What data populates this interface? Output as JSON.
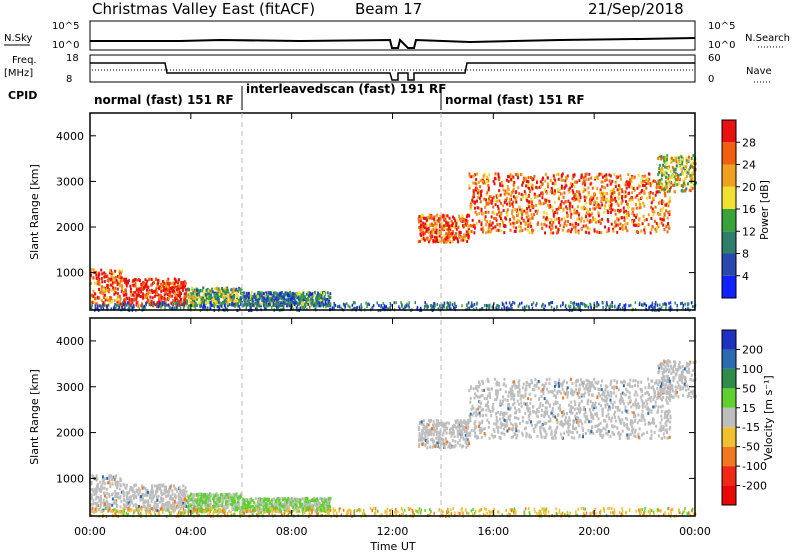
{
  "header": {
    "title": "Christmas Valley East (fitACF)",
    "beam": "Beam 17",
    "date": "21/Sep/2018"
  },
  "panels": {
    "nsky": {
      "label": "N.Sky",
      "right_label": "N.Search",
      "left_ticks": [
        "10^5",
        "10^0"
      ],
      "right_ticks": [
        "10^5",
        "10^0"
      ]
    },
    "freq": {
      "label_top": "Freq.",
      "label_unit": "[MHz]",
      "left_ticks": [
        "18",
        "8"
      ],
      "right_ticks": [
        "60",
        "0"
      ],
      "right_label": "Nave"
    },
    "cpid": {
      "label": "CPID",
      "modes": [
        "normal (fast) 151 RF",
        "interleavedscan (fast) 191 RF",
        "normal (fast) 151 RF"
      ]
    }
  },
  "chart_data": [
    {
      "type": "heatmap",
      "name": "power",
      "ylabel": "Slant Range [km]",
      "yticks": [
        "1000",
        "2000",
        "3000",
        "4000"
      ],
      "colorbar_label": "Power [dB]",
      "colorbar_ticks": [
        "4",
        "8",
        "12",
        "16",
        "20",
        "24",
        "28"
      ],
      "colorbar_colors": [
        "#1020ff",
        "#2848b0",
        "#2e7e6a",
        "#3aa23a",
        "#f0e030",
        "#f0a020",
        "#f06010",
        "#e81010"
      ],
      "blobs": [
        {
          "t0": 0.0,
          "t1": 1.3,
          "r0": 300,
          "r1": 1100,
          "level": 6
        },
        {
          "t0": 1.3,
          "t1": 3.8,
          "r0": 300,
          "r1": 900,
          "level": 7
        },
        {
          "t0": 3.8,
          "t1": 6.0,
          "r0": 300,
          "r1": 700,
          "level": 3
        },
        {
          "t0": 6.0,
          "t1": 9.5,
          "r0": 300,
          "r1": 600,
          "level": 2
        },
        {
          "t0": 13.0,
          "t1": 15.0,
          "r0": 1700,
          "r1": 2300,
          "level": 6
        },
        {
          "t0": 15.0,
          "t1": 23.0,
          "r0": 1900,
          "r1": 3200,
          "level": 6
        },
        {
          "t0": 22.5,
          "t1": 24.0,
          "r0": 2800,
          "r1": 3600,
          "level": 4
        }
      ]
    },
    {
      "type": "heatmap",
      "name": "velocity",
      "ylabel": "Slant Range [km]",
      "yticks": [
        "1000",
        "2000",
        "3000",
        "4000"
      ],
      "colorbar_label": "Velocity [m s⁻¹]",
      "colorbar_ticks": [
        "200",
        "100",
        "50",
        "15",
        "-15",
        "-50",
        "-100",
        "-200"
      ],
      "colorbar_colors": [
        "#2030c0",
        "#2a6bb0",
        "#2f8b4a",
        "#60d030",
        "#bebebe",
        "#f0c030",
        "#f07820",
        "#f02818",
        "#e80808"
      ]
    }
  ],
  "xaxis": {
    "label": "Time UT",
    "ticks": [
      "00:00",
      "04:00",
      "08:00",
      "12:00",
      "16:00",
      "20:00",
      "00:00"
    ],
    "range_hours": [
      0,
      24
    ]
  }
}
